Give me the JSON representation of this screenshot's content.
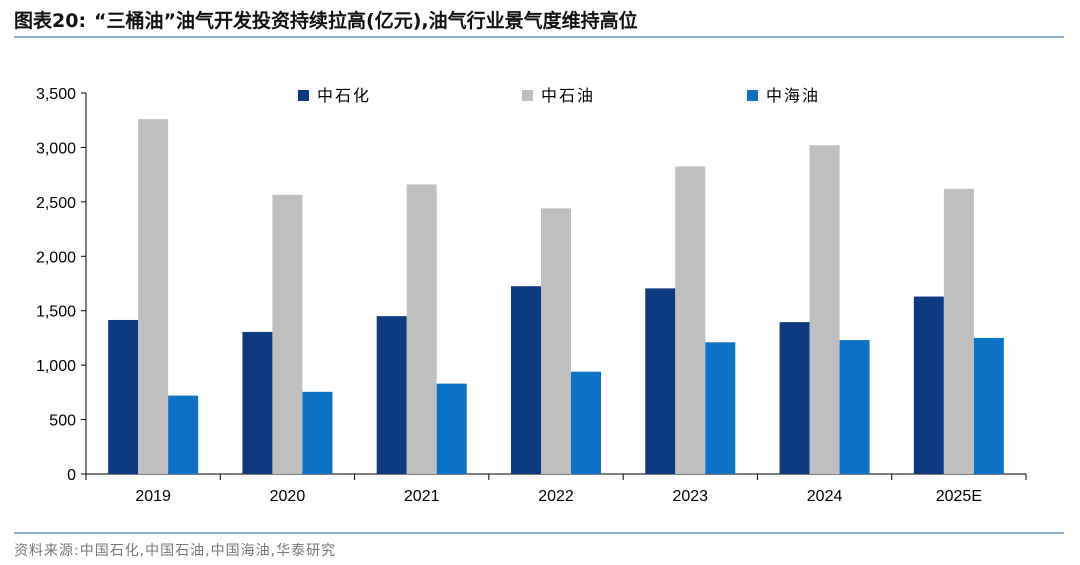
{
  "title": {
    "label": "图表20:",
    "text": "“三桶油”油气开发投资持续拉高(亿元),油气行业景气度维持高位"
  },
  "source": "资料来源:中国石化,中国石油,中国海油,华泰研究",
  "chart_data": {
    "type": "bar",
    "categories": [
      "2019",
      "2020",
      "2021",
      "2022",
      "2023",
      "2024",
      "2025E"
    ],
    "series": [
      {
        "name": "中石化",
        "color": "#0b3a7e",
        "values": [
          1415,
          1305,
          1450,
          1725,
          1705,
          1395,
          1630
        ]
      },
      {
        "name": "中石油",
        "color": "#bfbfbf",
        "values": [
          3260,
          2565,
          2660,
          2440,
          2825,
          3020,
          2620
        ]
      },
      {
        "name": "中海油",
        "color": "#0b72c6",
        "values": [
          720,
          755,
          830,
          940,
          1210,
          1230,
          1250
        ]
      }
    ],
    "ylim": [
      0,
      3500
    ],
    "yticks": [
      0,
      500,
      1000,
      1500,
      2000,
      2500,
      3000,
      3500
    ],
    "ytick_labels": [
      "0",
      "500",
      "1,000",
      "1,500",
      "2,000",
      "2,500",
      "3,000",
      "3,500"
    ],
    "legend_position": "top",
    "grid": false,
    "xlabel": "",
    "ylabel": ""
  }
}
